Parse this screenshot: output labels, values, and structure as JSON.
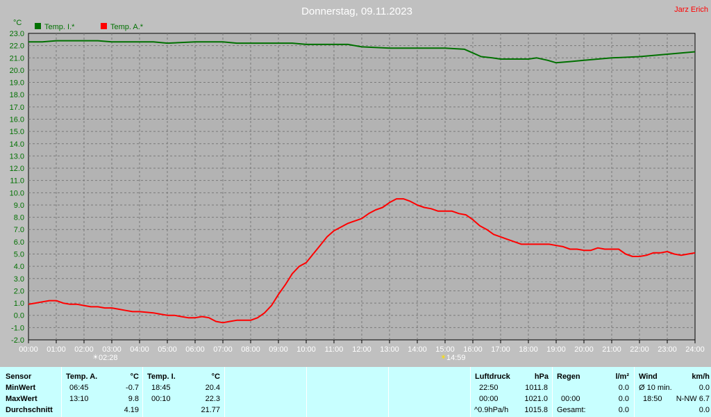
{
  "title": "Donnerstag, 09.11.2023",
  "author": "Jarz Erich",
  "colors": {
    "indoor": "#007000",
    "outdoor": "#ff0000",
    "background": "#c0c0c0",
    "plot_background": "#b3b3b3",
    "panel": "#c8ffff"
  },
  "chart_data": {
    "type": "line",
    "title": "Donnerstag, 09.11.2023",
    "ylabel": "°C",
    "xlabel": "",
    "ylim": [
      -2.0,
      23.0
    ],
    "xlim": [
      0,
      24
    ],
    "grid": true,
    "legend_position": "top-left",
    "y_ticks": [
      "-2.0",
      "-1.0",
      "0.0",
      "1.0",
      "2.0",
      "3.0",
      "4.0",
      "5.0",
      "6.0",
      "7.0",
      "8.0",
      "9.0",
      "10.0",
      "11.0",
      "12.0",
      "13.0",
      "14.0",
      "15.0",
      "16.0",
      "17.0",
      "18.0",
      "19.0",
      "20.0",
      "21.0",
      "22.0",
      "23.0"
    ],
    "x_ticks": [
      "00:00",
      "01:00",
      "02:00",
      "03:00",
      "04:00",
      "05:00",
      "06:00",
      "07:00",
      "08:00",
      "09:00",
      "10:00",
      "11:00",
      "12:00",
      "13:00",
      "14:00",
      "15:00",
      "16:00",
      "17:00",
      "18:00",
      "19:00",
      "20:00",
      "21:00",
      "22:00",
      "23:00",
      "24:00"
    ],
    "sunrise": "02:28",
    "sunset": "14:59",
    "series": [
      {
        "name": "Temp. I.*",
        "color": "#007000",
        "points": [
          [
            0,
            22.3
          ],
          [
            0.5,
            22.3
          ],
          [
            1,
            22.4
          ],
          [
            2,
            22.4
          ],
          [
            2.5,
            22.4
          ],
          [
            3,
            22.3
          ],
          [
            4,
            22.3
          ],
          [
            4.5,
            22.3
          ],
          [
            5,
            22.2
          ],
          [
            6,
            22.3
          ],
          [
            6.5,
            22.3
          ],
          [
            7,
            22.3
          ],
          [
            7.5,
            22.2
          ],
          [
            8,
            22.2
          ],
          [
            9,
            22.2
          ],
          [
            9.5,
            22.2
          ],
          [
            10,
            22.1
          ],
          [
            11,
            22.1
          ],
          [
            11.5,
            22.1
          ],
          [
            12,
            21.9
          ],
          [
            13,
            21.8
          ],
          [
            14,
            21.8
          ],
          [
            15,
            21.8
          ],
          [
            15.7,
            21.7
          ],
          [
            16,
            21.4
          ],
          [
            16.3,
            21.1
          ],
          [
            16.7,
            21.0
          ],
          [
            17,
            20.9
          ],
          [
            18,
            20.9
          ],
          [
            18.3,
            21.0
          ],
          [
            18.7,
            20.8
          ],
          [
            19,
            20.6
          ],
          [
            19.5,
            20.7
          ],
          [
            20,
            20.8
          ],
          [
            20.5,
            20.9
          ],
          [
            21,
            21.0
          ],
          [
            22,
            21.1
          ],
          [
            22.5,
            21.2
          ],
          [
            23,
            21.3
          ],
          [
            23.5,
            21.4
          ],
          [
            24,
            21.5
          ]
        ]
      },
      {
        "name": "Temp. A.*",
        "color": "#ff0000",
        "points": [
          [
            0,
            0.9
          ],
          [
            0.25,
            1.0
          ],
          [
            0.5,
            1.1
          ],
          [
            0.75,
            1.2
          ],
          [
            1,
            1.2
          ],
          [
            1.25,
            1.0
          ],
          [
            1.5,
            0.9
          ],
          [
            1.75,
            0.9
          ],
          [
            2,
            0.8
          ],
          [
            2.25,
            0.7
          ],
          [
            2.5,
            0.7
          ],
          [
            2.75,
            0.6
          ],
          [
            3,
            0.6
          ],
          [
            3.25,
            0.5
          ],
          [
            3.5,
            0.4
          ],
          [
            3.75,
            0.3
          ],
          [
            4,
            0.3
          ],
          [
            4.5,
            0.2
          ],
          [
            4.75,
            0.1
          ],
          [
            5,
            0.0
          ],
          [
            5.25,
            0.0
          ],
          [
            5.5,
            -0.1
          ],
          [
            5.75,
            -0.2
          ],
          [
            6,
            -0.2
          ],
          [
            6.25,
            -0.1
          ],
          [
            6.5,
            -0.2
          ],
          [
            6.75,
            -0.5
          ],
          [
            7,
            -0.6
          ],
          [
            7.25,
            -0.5
          ],
          [
            7.5,
            -0.4
          ],
          [
            8,
            -0.4
          ],
          [
            8.25,
            -0.2
          ],
          [
            8.5,
            0.2
          ],
          [
            8.75,
            0.8
          ],
          [
            9,
            1.7
          ],
          [
            9.25,
            2.5
          ],
          [
            9.5,
            3.4
          ],
          [
            9.75,
            4.0
          ],
          [
            10,
            4.3
          ],
          [
            10.25,
            5.0
          ],
          [
            10.5,
            5.7
          ],
          [
            10.75,
            6.4
          ],
          [
            11,
            6.9
          ],
          [
            11.25,
            7.2
          ],
          [
            11.5,
            7.5
          ],
          [
            11.75,
            7.7
          ],
          [
            12,
            7.9
          ],
          [
            12.25,
            8.3
          ],
          [
            12.5,
            8.6
          ],
          [
            12.75,
            8.8
          ],
          [
            13,
            9.2
          ],
          [
            13.25,
            9.5
          ],
          [
            13.5,
            9.5
          ],
          [
            13.75,
            9.3
          ],
          [
            14,
            9.0
          ],
          [
            14.25,
            8.8
          ],
          [
            14.5,
            8.7
          ],
          [
            14.75,
            8.5
          ],
          [
            15,
            8.5
          ],
          [
            15.25,
            8.5
          ],
          [
            15.5,
            8.3
          ],
          [
            15.75,
            8.2
          ],
          [
            16,
            7.8
          ],
          [
            16.25,
            7.3
          ],
          [
            16.5,
            7.0
          ],
          [
            16.75,
            6.6
          ],
          [
            17,
            6.4
          ],
          [
            17.25,
            6.2
          ],
          [
            17.5,
            6.0
          ],
          [
            17.75,
            5.8
          ],
          [
            18,
            5.8
          ],
          [
            18.5,
            5.8
          ],
          [
            18.75,
            5.8
          ],
          [
            19,
            5.7
          ],
          [
            19.25,
            5.6
          ],
          [
            19.5,
            5.4
          ],
          [
            19.75,
            5.4
          ],
          [
            20,
            5.3
          ],
          [
            20.25,
            5.3
          ],
          [
            20.5,
            5.5
          ],
          [
            20.75,
            5.4
          ],
          [
            21,
            5.4
          ],
          [
            21.25,
            5.4
          ],
          [
            21.5,
            5.0
          ],
          [
            21.75,
            4.8
          ],
          [
            22,
            4.8
          ],
          [
            22.25,
            4.9
          ],
          [
            22.5,
            5.1
          ],
          [
            22.75,
            5.1
          ],
          [
            23,
            5.2
          ],
          [
            23.25,
            5.0
          ],
          [
            23.5,
            4.9
          ],
          [
            23.75,
            5.0
          ],
          [
            24,
            5.1
          ]
        ]
      }
    ]
  },
  "legend": {
    "item1": "Temp. I.*",
    "item2": "Temp. A.*"
  },
  "y_unit_label": "°C",
  "sunrise_label": "02:28",
  "sunset_label": "14:59",
  "table": {
    "row_labels": {
      "header": "Sensor",
      "min": "MinWert",
      "max": "MaxWert",
      "avg": "Durchschnitt"
    },
    "temp_a": {
      "header": "Temp. A.",
      "unit": "°C",
      "min_time": "06:45",
      "min_val": "-0.7",
      "max_time": "13:10",
      "max_val": "9.8",
      "avg": "4.19"
    },
    "temp_i": {
      "header": "Temp. I.",
      "unit": "°C",
      "min_time": "18:45",
      "min_val": "20.4",
      "max_time": "00:10",
      "max_val": "22.3",
      "avg": "21.77"
    },
    "luftdruck": {
      "header": "Luftdruck",
      "unit": "hPa",
      "min_time": "22:50",
      "min_val": "1011.8",
      "max_time": "00:00",
      "max_val": "1021.0",
      "trend": "^0.9hPa/h",
      "avg": "1015.8"
    },
    "regen": {
      "header": "Regen",
      "unit": "l/m²",
      "row1": "0.0",
      "time": "00:00",
      "row2": "0.0",
      "total_label": "Gesamt:",
      "total": "0.0"
    },
    "wind": {
      "header": "Wind",
      "unit": "km/h",
      "avg_label": "Ø 10 min.",
      "avg_val": "0.0",
      "max_time": "18:50",
      "max_val": "N-NW 6.7",
      "row3": "0.0"
    }
  }
}
